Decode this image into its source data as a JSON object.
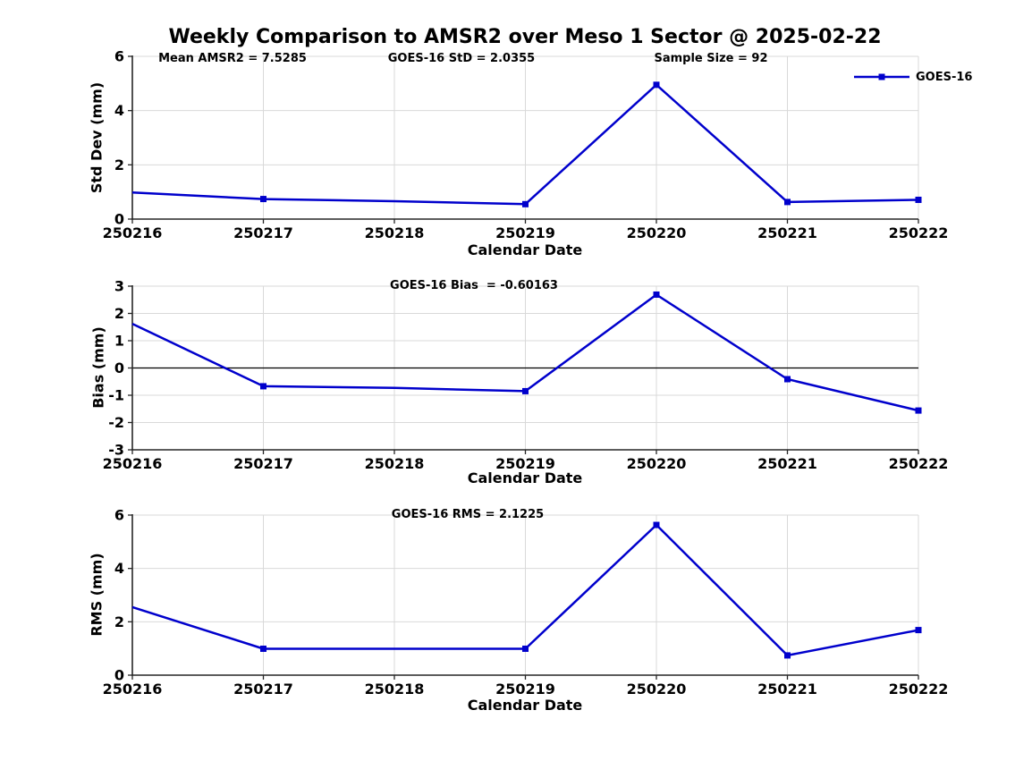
{
  "title": "Weekly Comparison to AMSR2 over Meso 1 Sector @ 2025-02-22",
  "legend": {
    "label": "GOES-16",
    "color": "#0000cc"
  },
  "colors": {
    "series_line": "#0000cc",
    "grid_line": "#d9d9d9",
    "axis_spine": "#262626",
    "zero_line": "#000000",
    "text": "#000000",
    "background": "#ffffff"
  },
  "chart_data": [
    {
      "type": "line",
      "name": "std-dev",
      "annotations": [
        "Mean AMSR2 = 7.5285",
        "GOES-16 StD = 2.0355",
        "Sample Size = 92"
      ],
      "xlabel": "Calendar Date",
      "ylabel": "Std Dev (mm)",
      "categories": [
        "250216",
        "250217",
        "250218",
        "250219",
        "250220",
        "250221",
        "250222"
      ],
      "yticks": [
        0,
        2,
        4,
        6
      ],
      "ylim": [
        0,
        6
      ],
      "grid": true,
      "zero_line": false,
      "legend_position": "top-right-outside",
      "series": [
        {
          "name": "GOES-16",
          "color": "#0000cc",
          "values": [
            0.98,
            0.74,
            0.66,
            0.55,
            4.95,
            0.63,
            0.71
          ],
          "marker": "square",
          "marker_categories": [
            "250217",
            "250219",
            "250220",
            "250221",
            "250222"
          ]
        }
      ]
    },
    {
      "type": "line",
      "name": "bias",
      "annotations": [
        "GOES-16 Bias  = -0.60163"
      ],
      "xlabel": "Calendar Date",
      "ylabel": "Bias (mm)",
      "categories": [
        "250216",
        "250217",
        "250218",
        "250219",
        "250220",
        "250221",
        "250222"
      ],
      "yticks": [
        -3,
        -2,
        -1,
        0,
        1,
        2,
        3
      ],
      "ylim": [
        -3,
        3
      ],
      "grid": true,
      "zero_line": true,
      "series": [
        {
          "name": "GOES-16",
          "color": "#0000cc",
          "values": [
            1.62,
            -0.67,
            -0.73,
            -0.85,
            2.69,
            -0.41,
            -1.56
          ],
          "marker": "square",
          "marker_categories": [
            "250217",
            "250219",
            "250220",
            "250221",
            "250222"
          ]
        }
      ]
    },
    {
      "type": "line",
      "name": "rms",
      "annotations": [
        "GOES-16 RMS = 2.1225"
      ],
      "xlabel": "Calendar Date",
      "ylabel": "RMS (mm)",
      "categories": [
        "250216",
        "250217",
        "250218",
        "250219",
        "250220",
        "250221",
        "250222"
      ],
      "yticks": [
        0,
        2,
        4,
        6
      ],
      "ylim": [
        0,
        6
      ],
      "grid": true,
      "zero_line": false,
      "series": [
        {
          "name": "GOES-16",
          "color": "#0000cc",
          "values": [
            2.55,
            0.99,
            0.99,
            0.99,
            5.63,
            0.74,
            1.69
          ],
          "marker": "square",
          "marker_categories": [
            "250217",
            "250219",
            "250220",
            "250221",
            "250222"
          ]
        }
      ]
    }
  ]
}
